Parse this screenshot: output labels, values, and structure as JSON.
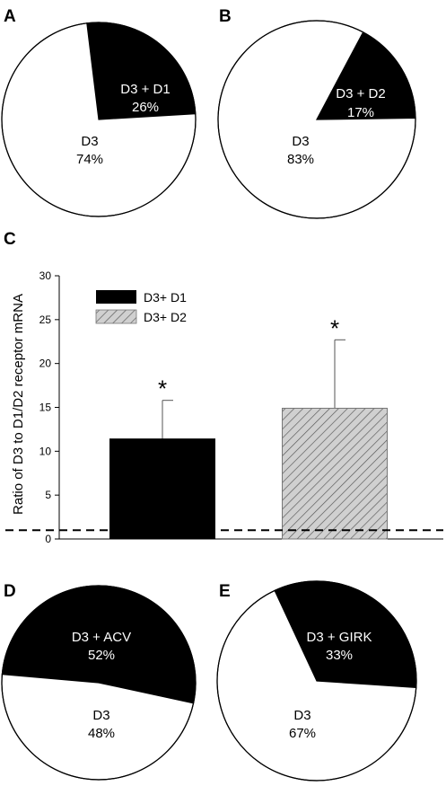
{
  "chart_data": [
    {
      "panel": "A",
      "type": "pie",
      "slices": [
        {
          "label": "D3 + D1",
          "value": 26,
          "display": "26%",
          "color": "#000000",
          "text_color": "#ffffff"
        },
        {
          "label": "D3",
          "value": 74,
          "display": "74%",
          "color": "#ffffff",
          "text_color": "#000000"
        }
      ]
    },
    {
      "panel": "B",
      "type": "pie",
      "slices": [
        {
          "label": "D3 + D2",
          "value": 17,
          "display": "17%",
          "color": "#000000",
          "text_color": "#ffffff"
        },
        {
          "label": "D3",
          "value": 83,
          "display": "83%",
          "color": "#ffffff",
          "text_color": "#000000"
        }
      ]
    },
    {
      "panel": "C",
      "type": "bar",
      "categories": [
        "D3+ D1",
        "D3+ D2"
      ],
      "values": [
        11.4,
        14.9
      ],
      "errors": [
        4.4,
        7.8
      ],
      "significance": [
        "*",
        "*"
      ],
      "fills": [
        "solid-black",
        "gray-hatched"
      ],
      "ylabel": "Ratio of D3 to D1/D2 receptor mRNA",
      "ylim": [
        0,
        30
      ],
      "yticks": [
        "0",
        "5",
        "10",
        "15",
        "20",
        "25",
        "30"
      ],
      "reference_line": 1,
      "legend": [
        "D3+ D1",
        "D3+ D2"
      ],
      "legend_position": "top-left",
      "grid": false
    },
    {
      "panel": "D",
      "type": "pie",
      "slices": [
        {
          "label": "D3 + ACV",
          "value": 52,
          "display": "52%",
          "color": "#000000",
          "text_color": "#ffffff"
        },
        {
          "label": "D3",
          "value": 48,
          "display": "48%",
          "color": "#ffffff",
          "text_color": "#000000"
        }
      ]
    },
    {
      "panel": "E",
      "type": "pie",
      "slices": [
        {
          "label": "D3 + GIRK",
          "value": 33,
          "display": "33%",
          "color": "#000000",
          "text_color": "#ffffff"
        },
        {
          "label": "D3",
          "value": 67,
          "display": "67%",
          "color": "#ffffff",
          "text_color": "#000000"
        }
      ]
    }
  ]
}
